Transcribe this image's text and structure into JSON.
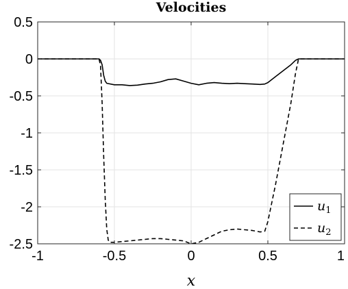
{
  "chart_data": {
    "type": "line",
    "title": "Velocities",
    "xlabel": "x",
    "ylabel": "",
    "xlim": [
      -1,
      1
    ],
    "ylim": [
      -2.5,
      0.5
    ],
    "xticks": [
      -1,
      -0.5,
      0,
      0.5,
      1
    ],
    "xtick_labels": [
      "-1",
      "-0.5",
      "0",
      "0.5",
      "1"
    ],
    "yticks": [
      0.5,
      0,
      -0.5,
      -1,
      -1.5,
      -2,
      -2.5
    ],
    "ytick_labels": [
      "0.5",
      "0",
      "-0.5",
      "-1",
      "-1.5",
      "-2",
      "-2.5"
    ],
    "grid": true,
    "legend_position": "bottom-right",
    "series": [
      {
        "name": "u",
        "subscript": "1",
        "style": "solid",
        "color": "#000000",
        "x": [
          -1,
          -0.6,
          -0.59,
          -0.58,
          -0.57,
          -0.56,
          -0.55,
          -0.5,
          -0.45,
          -0.4,
          -0.35,
          -0.3,
          -0.25,
          -0.2,
          -0.15,
          -0.1,
          -0.05,
          0,
          0.05,
          0.1,
          0.15,
          0.2,
          0.25,
          0.3,
          0.35,
          0.4,
          0.45,
          0.48,
          0.5,
          0.55,
          0.6,
          0.65,
          0.68,
          0.7,
          0.75,
          1
        ],
        "y": [
          0,
          0,
          -0.02,
          -0.08,
          -0.22,
          -0.3,
          -0.33,
          -0.35,
          -0.35,
          -0.36,
          -0.355,
          -0.34,
          -0.33,
          -0.31,
          -0.28,
          -0.27,
          -0.3,
          -0.33,
          -0.35,
          -0.33,
          -0.32,
          -0.33,
          -0.335,
          -0.33,
          -0.335,
          -0.34,
          -0.345,
          -0.34,
          -0.32,
          -0.24,
          -0.16,
          -0.08,
          -0.02,
          0,
          0,
          0
        ]
      },
      {
        "name": "u",
        "subscript": "2",
        "style": "dashed",
        "color": "#000000",
        "x": [
          -1,
          -0.6,
          -0.59,
          -0.58,
          -0.57,
          -0.56,
          -0.55,
          -0.54,
          -0.53,
          -0.5,
          -0.45,
          -0.4,
          -0.35,
          -0.3,
          -0.25,
          -0.2,
          -0.15,
          -0.1,
          -0.05,
          0,
          0.05,
          0.1,
          0.15,
          0.2,
          0.25,
          0.3,
          0.35,
          0.4,
          0.45,
          0.48,
          0.5,
          0.55,
          0.6,
          0.65,
          0.68,
          0.7,
          1
        ],
        "y": [
          0,
          0,
          -0.1,
          -0.6,
          -1.3,
          -1.9,
          -2.3,
          -2.45,
          -2.48,
          -2.48,
          -2.47,
          -2.46,
          -2.45,
          -2.44,
          -2.43,
          -2.43,
          -2.44,
          -2.45,
          -2.46,
          -2.5,
          -2.48,
          -2.43,
          -2.38,
          -2.33,
          -2.31,
          -2.3,
          -2.31,
          -2.32,
          -2.34,
          -2.33,
          -2.2,
          -1.7,
          -1.15,
          -0.6,
          -0.2,
          0,
          0
        ]
      }
    ]
  }
}
